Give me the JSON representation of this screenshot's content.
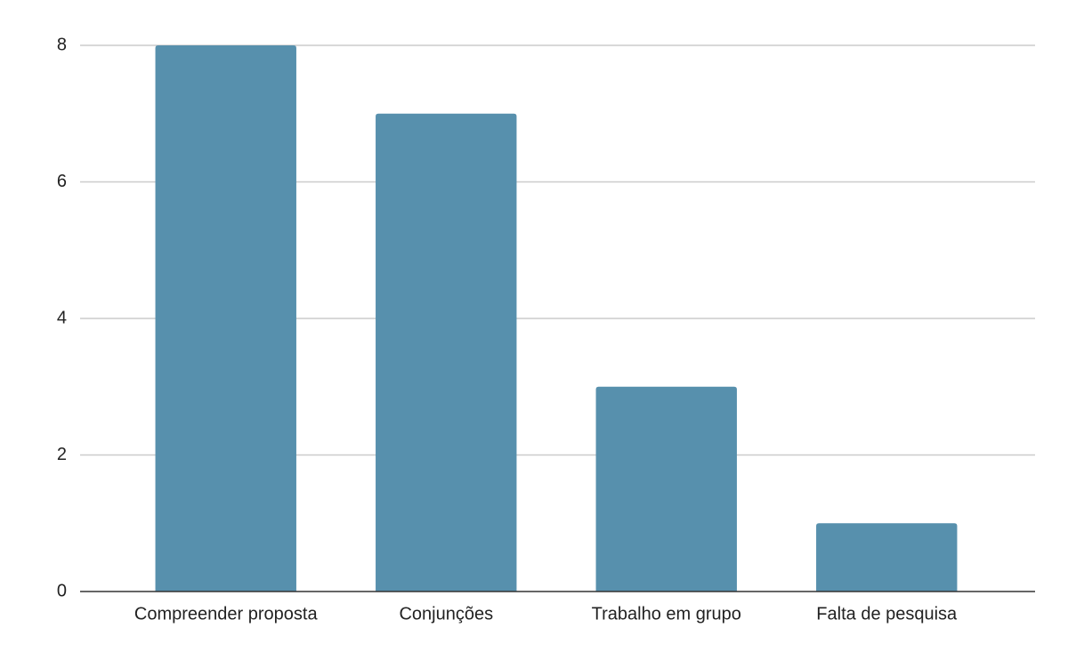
{
  "chart_data": {
    "type": "bar",
    "categories": [
      "Compreender proposta",
      "Conjunções",
      "Trabalho em grupo",
      "Falta de pesquisa"
    ],
    "values": [
      8,
      7,
      3,
      1
    ],
    "color": "#5790ad",
    "ylim": [
      0,
      8
    ],
    "yticks": [
      0,
      2,
      4,
      6,
      8
    ],
    "grid": true
  }
}
